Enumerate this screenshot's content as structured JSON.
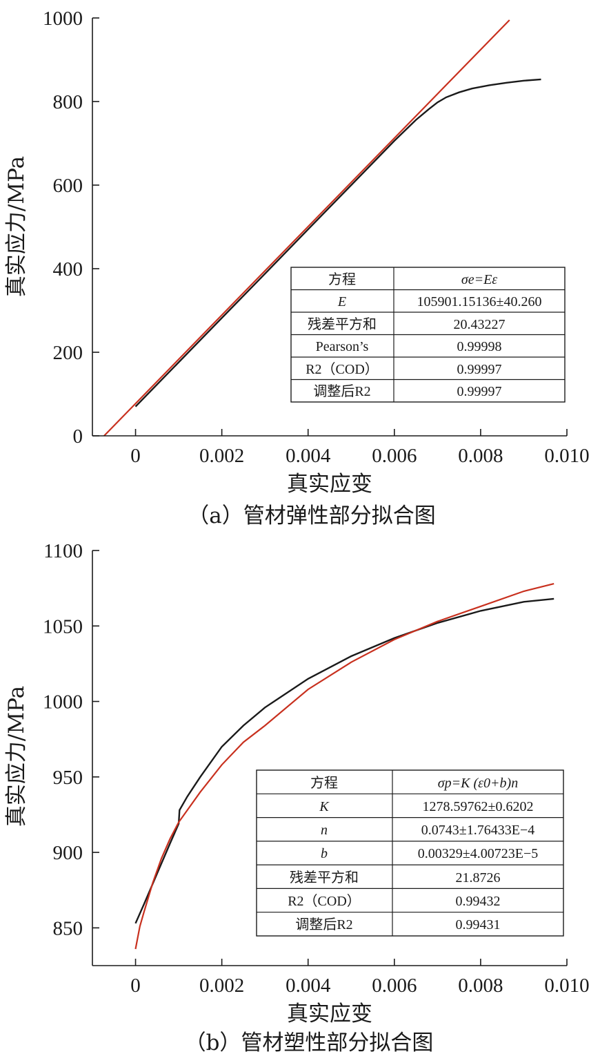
{
  "chart_data": [
    {
      "type": "line",
      "caption": "（a）管材弹性部分拟合图",
      "xlabel": "真实应变",
      "ylabel": "真实应力/MPa",
      "xlim": [
        -0.001,
        0.01
      ],
      "ylim": [
        0,
        1000
      ],
      "x_ticks": [
        0,
        0.002,
        0.004,
        0.006,
        0.008,
        0.01
      ],
      "x_tick_labels": [
        "0",
        "0.002",
        "0.004",
        "0.006",
        "0.008",
        "0.010"
      ],
      "y_ticks": [
        0,
        200,
        400,
        600,
        800,
        1000
      ],
      "y_tick_labels": [
        "0",
        "200",
        "400",
        "600",
        "800",
        "1000"
      ],
      "series": [
        {
          "color": "#1a1a1a",
          "x": [
            0,
            0.001,
            0.002,
            0.003,
            0.004,
            0.005,
            0.006,
            0.0065,
            0.0068,
            0.007,
            0.0072,
            0.0075,
            0.0078,
            0.0082,
            0.0086,
            0.009,
            0.0094
          ],
          "y": [
            70,
            176,
            282,
            388,
            494,
            600,
            706,
            756,
            782,
            798,
            810,
            822,
            831,
            839,
            845,
            850,
            853
          ]
        },
        {
          "color": "#c8301e",
          "x": [
            -0.00073,
            0.00867
          ],
          "y": [
            0,
            995
          ]
        }
      ],
      "table": {
        "rows": [
          {
            "label": "方程",
            "value": "σe=Eε"
          },
          {
            "label": "E",
            "value": "105901.15136±40.260"
          },
          {
            "label": "残差平方和",
            "value": "20.43227"
          },
          {
            "label": "Pearson’s",
            "value": "0.99998"
          },
          {
            "label": "R2（COD）",
            "value": "0.99997"
          },
          {
            "label": "调整后R2",
            "value": "0.99997"
          }
        ]
      },
      "grid": false
    },
    {
      "type": "line",
      "caption": "（b）管材塑性部分拟合图",
      "xlabel": "真实应变",
      "ylabel": "真实应力/MPa",
      "xlim": [
        -0.001,
        0.01
      ],
      "ylim": [
        825,
        1100
      ],
      "x_ticks": [
        0,
        0.002,
        0.004,
        0.006,
        0.008,
        0.01
      ],
      "x_tick_labels": [
        "0",
        "0.002",
        "0.004",
        "0.006",
        "0.008",
        "0.010"
      ],
      "y_ticks": [
        850,
        900,
        950,
        1000,
        1050,
        1100
      ],
      "y_tick_labels": [
        "850",
        "900",
        "950",
        "1000",
        "1050",
        "1100"
      ],
      "series": [
        {
          "color": "#1a1a1a",
          "x": [
            0,
            0.0002,
            0.0005,
            0.0008,
            0.001,
            0.00102,
            0.0012,
            0.0015,
            0.002,
            0.0025,
            0.003,
            0.004,
            0.005,
            0.006,
            0.007,
            0.008,
            0.009,
            0.0097
          ],
          "y": [
            853,
            866,
            886,
            906,
            919,
            928,
            937,
            950,
            970,
            984,
            996,
            1015,
            1030,
            1042,
            1052,
            1060,
            1066,
            1068
          ]
        },
        {
          "color": "#c8301e",
          "x": [
            0,
            0.0001,
            0.0002,
            0.0004,
            0.0006,
            0.0008,
            0.001,
            0.0015,
            0.002,
            0.0025,
            0.003,
            0.004,
            0.005,
            0.006,
            0.007,
            0.008,
            0.009,
            0.0097
          ],
          "y": [
            836,
            851,
            861,
            880,
            896,
            909,
            920,
            940,
            958,
            973,
            984,
            1008,
            1026,
            1041,
            1053,
            1063,
            1073,
            1078
          ]
        }
      ],
      "table": {
        "rows": [
          {
            "label": "方程",
            "value": "σp=K (ε0+b)n"
          },
          {
            "label": "K",
            "value": "1278.59762±0.6202"
          },
          {
            "label": "n",
            "value": "0.0743±1.76433E−4"
          },
          {
            "label": "b",
            "value": "0.00329±4.00723E−5"
          },
          {
            "label": "残差平方和",
            "value": "21.8726"
          },
          {
            "label": "R2（COD）",
            "value": "0.99432"
          },
          {
            "label": "调整后R2",
            "value": "0.99431"
          }
        ]
      },
      "grid": false
    }
  ]
}
